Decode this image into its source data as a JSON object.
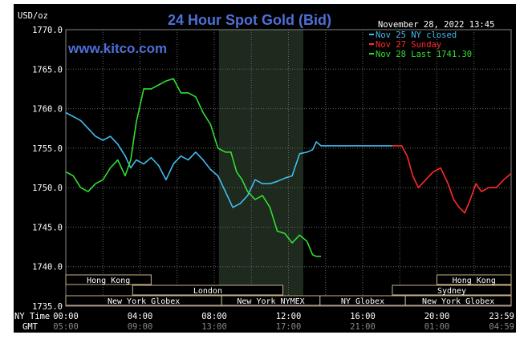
{
  "chart_data": {
    "type": "line",
    "title": "24 Hour Spot Gold (Bid)",
    "watermark": "www.kitco.com",
    "timestamp": "November 28, 2022 13:45",
    "ylabel": "USD/oz",
    "ylim": [
      1735,
      1770
    ],
    "yticks": [
      "1770.0",
      "1765.0",
      "1760.0",
      "1755.0",
      "1750.0",
      "1745.0",
      "1740.0",
      "1735.0"
    ],
    "ytick_values": [
      1770,
      1765,
      1760,
      1755,
      1750,
      1745,
      1740,
      1735
    ],
    "xlim": [
      0,
      24
    ],
    "ny_time_label": "NY Time",
    "gmt_label": "GMT",
    "xticks_ny": [
      "00:00",
      "04:00",
      "08:00",
      "12:00",
      "16:00",
      "20:00",
      "23:59"
    ],
    "xticks_gmt": [
      "05:00",
      "09:00",
      "13:00",
      "17:00",
      "21:00",
      "01:00",
      "04:59"
    ],
    "xtick_hours": [
      0,
      4,
      8,
      12,
      16,
      20,
      23.98
    ],
    "grid": true,
    "highlight_band": [
      8.25,
      12.8
    ],
    "legend": [
      {
        "label": "Nov 25 NY closed",
        "color": "#44bbee"
      },
      {
        "label": "Nov 27 Sunday",
        "color": "#ff2a2a"
      },
      {
        "label": "Nov 28 Last 1741.30",
        "color": "#33dd33"
      }
    ],
    "sessions": [
      {
        "label": "Hong Kong",
        "start": 0,
        "end": 4.6,
        "row": 0
      },
      {
        "label": "Hong Kong",
        "start": 20.0,
        "end": 24,
        "row": 0
      },
      {
        "label": "London",
        "start": 3.6,
        "end": 11.7,
        "row": 1
      },
      {
        "label": "Sydney",
        "start": 17.6,
        "end": 24,
        "row": 1
      },
      {
        "label": "New York Globex",
        "start": 0,
        "end": 8.4,
        "row": 2
      },
      {
        "label": "New York NYMEX",
        "start": 8.4,
        "end": 13.7,
        "row": 2
      },
      {
        "label": "NY Globex",
        "start": 13.7,
        "end": 18.3,
        "row": 2
      },
      {
        "label": "New York Globex",
        "start": 18.3,
        "end": 24,
        "row": 2
      }
    ],
    "series": [
      {
        "name": "Nov 25 NY closed",
        "color": "#44bbee",
        "points": [
          [
            0,
            1759.5
          ],
          [
            0.4,
            1759
          ],
          [
            0.8,
            1758.5
          ],
          [
            1.2,
            1757.5
          ],
          [
            1.6,
            1756.5
          ],
          [
            2,
            1756
          ],
          [
            2.4,
            1756.5
          ],
          [
            2.8,
            1755.5
          ],
          [
            3.2,
            1754
          ],
          [
            3.5,
            1752.5
          ],
          [
            3.8,
            1753.5
          ],
          [
            4.2,
            1753
          ],
          [
            4.6,
            1753.8
          ],
          [
            5,
            1752.8
          ],
          [
            5.4,
            1751
          ],
          [
            5.8,
            1753
          ],
          [
            6.2,
            1754
          ],
          [
            6.6,
            1753.5
          ],
          [
            7,
            1754.5
          ],
          [
            7.4,
            1753.5
          ],
          [
            7.8,
            1752.3
          ],
          [
            8.2,
            1751.5
          ],
          [
            8.6,
            1749.5
          ],
          [
            9,
            1747.5
          ],
          [
            9.4,
            1748
          ],
          [
            9.8,
            1749
          ],
          [
            10.2,
            1751
          ],
          [
            10.6,
            1750.5
          ],
          [
            11,
            1750.5
          ],
          [
            11.4,
            1750.8
          ],
          [
            11.8,
            1751.2
          ],
          [
            12.2,
            1751.5
          ],
          [
            12.6,
            1754.3
          ],
          [
            13,
            1754.5
          ],
          [
            13.3,
            1754.8
          ],
          [
            13.5,
            1755.8
          ],
          [
            13.75,
            1755.3
          ],
          [
            14,
            1755.3
          ],
          [
            15,
            1755.3
          ],
          [
            16,
            1755.3
          ],
          [
            17,
            1755.3
          ],
          [
            17.6,
            1755.3
          ]
        ]
      },
      {
        "name": "Nov 27 Sunday",
        "color": "#ff2a2a",
        "points": [
          [
            17.6,
            1755.3
          ],
          [
            18.1,
            1755.3
          ],
          [
            18.4,
            1754
          ],
          [
            18.7,
            1751.5
          ],
          [
            19,
            1750
          ],
          [
            19.4,
            1751
          ],
          [
            19.8,
            1752
          ],
          [
            20.2,
            1752.5
          ],
          [
            20.6,
            1750.5
          ],
          [
            20.9,
            1748.5
          ],
          [
            21.2,
            1747.5
          ],
          [
            21.5,
            1746.8
          ],
          [
            21.8,
            1748.5
          ],
          [
            22.1,
            1750.5
          ],
          [
            22.4,
            1749.5
          ],
          [
            22.8,
            1750
          ],
          [
            23.2,
            1750
          ],
          [
            23.6,
            1751
          ],
          [
            24,
            1751.8
          ]
        ]
      },
      {
        "name": "Nov 28 Last 1741.30",
        "color": "#33dd33",
        "points": [
          [
            0,
            1752
          ],
          [
            0.4,
            1751.5
          ],
          [
            0.8,
            1750
          ],
          [
            1.2,
            1749.5
          ],
          [
            1.6,
            1750.5
          ],
          [
            2,
            1751
          ],
          [
            2.4,
            1752.5
          ],
          [
            2.8,
            1753.5
          ],
          [
            3.2,
            1751.5
          ],
          [
            3.5,
            1753.5
          ],
          [
            3.8,
            1758.3
          ],
          [
            4.2,
            1762.5
          ],
          [
            4.6,
            1762.5
          ],
          [
            5,
            1763
          ],
          [
            5.4,
            1763.5
          ],
          [
            5.8,
            1763.8
          ],
          [
            6.2,
            1762
          ],
          [
            6.6,
            1762
          ],
          [
            7,
            1761.5
          ],
          [
            7.4,
            1759.5
          ],
          [
            7.8,
            1758
          ],
          [
            8.2,
            1755
          ],
          [
            8.6,
            1754.5
          ],
          [
            8.9,
            1754.5
          ],
          [
            9.2,
            1752
          ],
          [
            9.5,
            1751
          ],
          [
            9.8,
            1749.5
          ],
          [
            10.2,
            1748.5
          ],
          [
            10.6,
            1749
          ],
          [
            11,
            1747.5
          ],
          [
            11.4,
            1744.5
          ],
          [
            11.8,
            1744.2
          ],
          [
            12.2,
            1743
          ],
          [
            12.6,
            1744
          ],
          [
            13,
            1743.2
          ],
          [
            13.3,
            1741.5
          ],
          [
            13.5,
            1741.3
          ],
          [
            13.75,
            1741.3
          ]
        ]
      }
    ]
  }
}
